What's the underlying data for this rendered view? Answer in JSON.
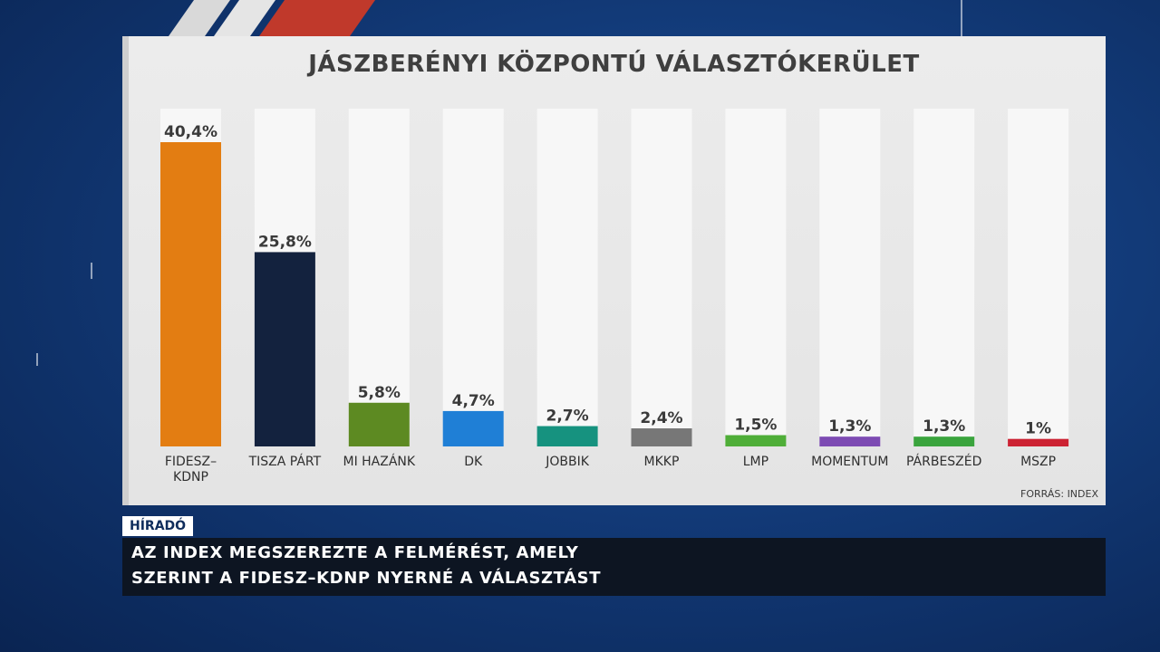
{
  "chart_data": {
    "type": "bar",
    "title": "JÁSZBERÉNYI KÖZPONTÚ VÁLASZTÓKERÜLET",
    "categories": [
      "FIDESZ–KDNP",
      "TISZA PÁRT",
      "MI HAZÁNK",
      "DK",
      "JOBBIK",
      "MKKP",
      "LMP",
      "MOMENTUM",
      "PÁRBESZÉD",
      "MSZP"
    ],
    "category_lines": [
      [
        "FIDESZ–",
        "KDNP"
      ],
      [
        "TISZA PÁRT"
      ],
      [
        "MI HAZÁNK"
      ],
      [
        "DK"
      ],
      [
        "JOBBIK"
      ],
      [
        "MKKP"
      ],
      [
        "LMP"
      ],
      [
        "MOMENTUM"
      ],
      [
        "PÁRBESZÉD"
      ],
      [
        "MSZP"
      ]
    ],
    "values": [
      40.4,
      25.8,
      5.8,
      4.7,
      2.7,
      2.4,
      1.5,
      1.3,
      1.3,
      1
    ],
    "value_labels": [
      "40,4%",
      "25,8%",
      "5,8%",
      "4,7%",
      "2,7%",
      "2,4%",
      "1,5%",
      "1,3%",
      "1,3%",
      "1%"
    ],
    "colors": [
      "#e37d12",
      "#13223e",
      "#5d8a22",
      "#1f7fd6",
      "#16927f",
      "#777777",
      "#4fae38",
      "#7d4bb3",
      "#3aa43d",
      "#cc2233"
    ],
    "ylim": [
      0,
      40.4
    ],
    "xlabel": "",
    "ylabel": "",
    "source": "FORRÁS: INDEX",
    "grid": false,
    "legend": "none"
  },
  "broadcast": {
    "program": "HÍRADÓ",
    "ticker_line1": "AZ INDEX MEGSZEREZTE A FELMÉRÉST, AMELY",
    "ticker_line2": "SZERINT A FIDESZ–KDNP NYERNÉ A VÁLASZTÁST"
  }
}
